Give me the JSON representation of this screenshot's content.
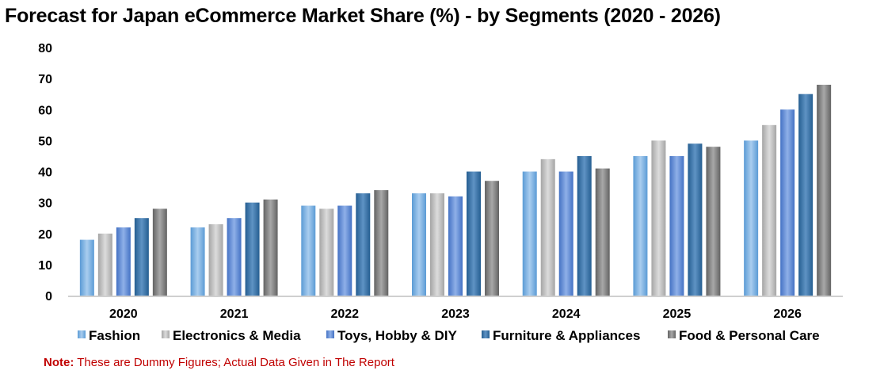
{
  "chart_data": {
    "type": "bar",
    "title": "Forecast for Japan eCommerce Market Share (%) - by Segments (2020 - 2026)",
    "categories": [
      "2020",
      "2021",
      "2022",
      "2023",
      "2024",
      "2025",
      "2026"
    ],
    "series": [
      {
        "name": "Fashion",
        "values": [
          18,
          22,
          29,
          33,
          40,
          45,
          50
        ]
      },
      {
        "name": "Electronics & Media",
        "values": [
          20,
          23,
          28,
          33,
          44,
          50,
          55
        ]
      },
      {
        "name": "Toys, Hobby & DIY",
        "values": [
          22,
          25,
          29,
          32,
          40,
          45,
          60
        ]
      },
      {
        "name": "Furniture & Appliances",
        "values": [
          25,
          30,
          33,
          40,
          45,
          49,
          65
        ]
      },
      {
        "name": "Food & Personal Care",
        "values": [
          28,
          31,
          34,
          37,
          41,
          48,
          68
        ]
      }
    ],
    "ylim": [
      0,
      80
    ],
    "yticks": [
      "0",
      "10",
      "20",
      "30",
      "40",
      "50",
      "60",
      "70",
      "80"
    ],
    "grid": false,
    "legend_position": "bottom",
    "colors": {
      "Fashion": [
        "#5b9bd5",
        "#a9cdef"
      ],
      "Electronics & Media": [
        "#a5a5a5",
        "#dcdcdc"
      ],
      "Toys, Hobby & DIY": [
        "#4472c4",
        "#8fb0e8"
      ],
      "Furniture & Appliances": [
        "#255e91",
        "#5f93c4"
      ],
      "Food & Personal Care": [
        "#636363",
        "#a8a8a8"
      ]
    }
  },
  "note": {
    "label": "Note:",
    "text": " These are Dummy Figures; Actual Data Given in The Report"
  }
}
